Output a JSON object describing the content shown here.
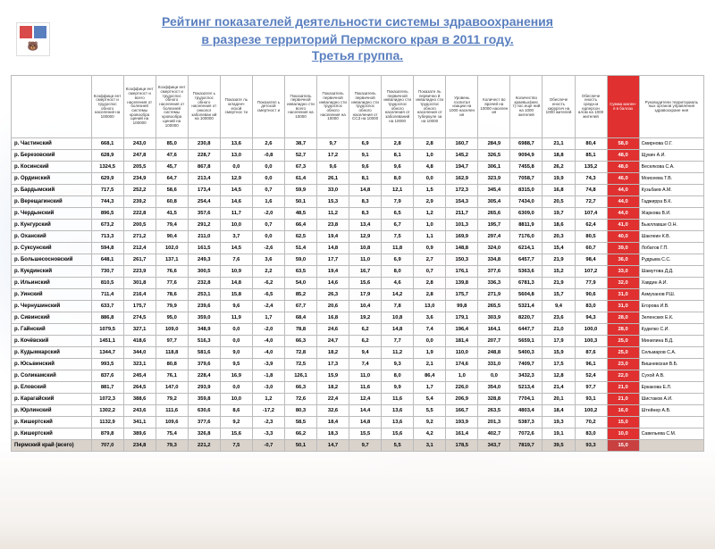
{
  "logo_name": "perm-krai-logo",
  "title": {
    "line1": "Рейтинг показателей деятельности системы здравоохранения",
    "line2": "в разрезе территорий Пермского края в 2011 году.",
    "group": "Третья группа."
  },
  "table": {
    "headers": [
      "Коэффици ент смертност и трудоспос обного населения на 100000",
      "Коэффици ент смертност и всего населения от болезней системы кровообра щений на 100000",
      "Коэффици ент смертност и трудоспос обного населения от болезней системы кровообра щений на 100000",
      "Показател ь трудоспос обного населения от онколог заболеван ий на 100000",
      "Показате ль младенч еской смертнос ти",
      "Показател ь детской смертност и",
      "Показатель первичной инвалидно сти всего населения на 10000",
      "Показатель первичной инвалидно сти трудоспос обного населения на 10000",
      "Показатель первичной инвалидно сти трудоспос обного населения от ССЗ на 10000",
      "Показатель первичной инвалидно сти трудоспос обного населения от заболеваний на 10000",
      "Показате ль первично й инвалидно сти трудоспос обного населения от туберкуле за на 10000",
      "Уровень госпитал изации на 1000 населен ия",
      "Количест во врачей на 10000 населен ия",
      "Количество краевых(мес т) пос.еще ний на 1000 жителей",
      "Обеспече нность хирургич на 1000 жителей",
      "Обеспече нность средн.м едперсон алом на 1000 жителей",
      "Сумма мален-я в баллах",
      "Руководители территориаль ных органов управления здравоохране ния"
    ],
    "header_fontsize": 4.5,
    "row_fontsize": 6,
    "border_color": "#bbb",
    "score_bg": "#e03030",
    "score_fg": "#ffffff",
    "total_bg": "#d9d3cc",
    "rows": [
      {
        "name": "р. Частинский",
        "v": [
          "668,1",
          "243,0",
          "85,0",
          "230,8",
          "13,6",
          "2,6",
          "38,7",
          "9,7",
          "6,9",
          "2,8",
          "2,8",
          "160,7",
          "284,9",
          "6988,7",
          "21,1",
          "80,4"
        ],
        "score": "58,0",
        "head": "Смирнова О.Г."
      },
      {
        "name": "р. Березовский",
        "v": [
          "628,9",
          "247,8",
          "47,6",
          "228,7",
          "13,0",
          "-0,8",
          "52,7",
          "17,2",
          "9,1",
          "8,1",
          "1,0",
          "145,2",
          "326,5",
          "9094,9",
          "18,8",
          "85,1"
        ],
        "score": "48,0",
        "head": "Щукин А.И."
      },
      {
        "name": "р. Косинский",
        "v": [
          "1324,5",
          "205,5",
          "45,7",
          "867,8",
          "0,0",
          "0,0",
          "67,3",
          "9,6",
          "9,6",
          "9,6",
          "4,8",
          "194,7",
          "306,1",
          "7455,8",
          "26,2",
          "135,2"
        ],
        "score": "48,0",
        "head": "Веселкова С.А."
      },
      {
        "name": "р. Ординский",
        "v": [
          "629,9",
          "234,9",
          "64,7",
          "213,4",
          "12,9",
          "0,0",
          "61,4",
          "26,1",
          "8,1",
          "8,0",
          "0,0",
          "162,9",
          "323,9",
          "7058,7",
          "19,9",
          "74,3"
        ],
        "score": "46,0",
        "head": "Моисеева Т.В."
      },
      {
        "name": "р. Бардымский",
        "v": [
          "717,5",
          "252,2",
          "58,6",
          "173,4",
          "14,5",
          "0,7",
          "59,9",
          "33,0",
          "14,8",
          "12,1",
          "1,5",
          "172,3",
          "345,4",
          "8315,0",
          "16,8",
          "74,8"
        ],
        "score": "44,0",
        "head": "Кузьбаев А.М."
      },
      {
        "name": "р. Верещагинский",
        "v": [
          "744,3",
          "239,2",
          "60,8",
          "254,4",
          "14,6",
          "1,6",
          "50,1",
          "15,3",
          "8,3",
          "7,9",
          "2,9",
          "154,3",
          "305,4",
          "7434,0",
          "20,5",
          "72,7"
        ],
        "score": "44,0",
        "head": "Гаджирра В.К."
      },
      {
        "name": "р. Чердынский",
        "v": [
          "896,5",
          "222,8",
          "41,5",
          "357,6",
          "11,7",
          "-2,0",
          "48,5",
          "11,2",
          "8,3",
          "6,5",
          "1,2",
          "211,7",
          "265,6",
          "6309,0",
          "19,7",
          "107,4"
        ],
        "score": "44,0",
        "head": "Жаркова В.И."
      },
      {
        "name": "р. Кунгурский",
        "v": [
          "673,2",
          "200,5",
          "79,4",
          "291,2",
          "10,0",
          "0,7",
          "66,4",
          "23,8",
          "13,4",
          "6,7",
          "1,0",
          "101,3",
          "195,7",
          "8811,9",
          "18,6",
          "62,4"
        ],
        "score": "41,0",
        "head": "Быкллавше О.Н."
      },
      {
        "name": "р. Оханский",
        "v": [
          "713,3",
          "271,2",
          "90,4",
          "211,0",
          "3,7",
          "0,0",
          "62,5",
          "19,4",
          "12,9",
          "7,5",
          "1,1",
          "169,9",
          "297,4",
          "7176,0",
          "20,3",
          "80,5"
        ],
        "score": "40,0",
        "head": "Шаклеин К.В."
      },
      {
        "name": "р. Суксунский",
        "v": [
          "594,8",
          "212,4",
          "102,0",
          "161,5",
          "14,5",
          "-2,6",
          "51,4",
          "14,8",
          "10,8",
          "11,8",
          "0,9",
          "148,8",
          "324,0",
          "6214,1",
          "15,4",
          "60,7"
        ],
        "score": "39,0",
        "head": "Лобатов Г.П."
      },
      {
        "name": "р. Большесосновский",
        "v": [
          "648,1",
          "261,7",
          "137,1",
          "249,3",
          "7,6",
          "3,6",
          "59,0",
          "17,7",
          "11,0",
          "6,9",
          "2,7",
          "150,3",
          "334,8",
          "6457,7",
          "21,9",
          "98,4"
        ],
        "score": "36,0",
        "head": "Рудрыва С.С."
      },
      {
        "name": "р. Куединский",
        "v": [
          "730,7",
          "223,9",
          "76,6",
          "300,5",
          "10,9",
          "2,2",
          "63,5",
          "19,4",
          "16,7",
          "8,0",
          "0,7",
          "176,1",
          "377,6",
          "5363,6",
          "15,2",
          "107,2"
        ],
        "score": "33,0",
        "head": "Шамутова Д.Д."
      },
      {
        "name": "р. Ильинский",
        "v": [
          "810,5",
          "301,8",
          "77,6",
          "232,8",
          "14,8",
          "-6,2",
          "54,0",
          "14,6",
          "15,6",
          "4,6",
          "2,8",
          "139,8",
          "336,3",
          "6781,3",
          "21,9",
          "77,9"
        ],
        "score": "32,0",
        "head": "Хавдин А.И."
      },
      {
        "name": "р. Уинский",
        "v": [
          "711,4",
          "216,4",
          "78,6",
          "253,1",
          "15,8",
          "-6,5",
          "85,2",
          "26,3",
          "17,9",
          "14,2",
          "2,8",
          "175,7",
          "271,9",
          "5604,8",
          "15,7",
          "90,6"
        ],
        "score": "31,0",
        "head": "Азмуханов Р.Ш."
      },
      {
        "name": "р. Чернушинский",
        "v": [
          "633,7",
          "175,7",
          "79,9",
          "239,6",
          "9,6",
          "-2,4",
          "67,7",
          "20,6",
          "10,4",
          "7,8",
          "13,0",
          "99,8",
          "265,5",
          "5321,4",
          "9,4",
          "83,0"
        ],
        "score": "31,0",
        "head": "Егорова И.В."
      },
      {
        "name": "р. Сивинский",
        "v": [
          "886,8",
          "274,5",
          "95,0",
          "359,0",
          "11,9",
          "1,7",
          "68,4",
          "16,8",
          "19,2",
          "10,8",
          "3,6",
          "179,1",
          "303,9",
          "8220,7",
          "23,6",
          "94,3"
        ],
        "score": "28,0",
        "head": "Зеленских Е.К."
      },
      {
        "name": "р. Гайнский",
        "v": [
          "1079,5",
          "327,1",
          "109,0",
          "348,9",
          "0,0",
          "-2,0",
          "78,8",
          "24,6",
          "6,2",
          "14,8",
          "7,4",
          "196,4",
          "164,1",
          "6447,7",
          "21,0",
          "100,0"
        ],
        "score": "28,0",
        "head": "Куделко С.И."
      },
      {
        "name": "р. Кочёвский",
        "v": [
          "1451,1",
          "418,6",
          "97,7",
          "516,3",
          "0,0",
          "-4,0",
          "66,3",
          "24,7",
          "6,2",
          "7,7",
          "0,0",
          "181,4",
          "207,7",
          "5659,1",
          "17,9",
          "100,3"
        ],
        "score": "25,0",
        "head": "Минилина В.Д."
      },
      {
        "name": "р. Кудымкарский",
        "v": [
          "1344,7",
          "344,0",
          "118,8",
          "581,6",
          "9,0",
          "-4,0",
          "72,8",
          "18,2",
          "9,4",
          "11,2",
          "1,9",
          "110,0",
          "248,8",
          "5400,3",
          "15,9",
          "87,6"
        ],
        "score": "25,0",
        "head": "Сельмаров С.А."
      },
      {
        "name": "р. Юсьвинский",
        "v": [
          "993,5",
          "323,1",
          "80,8",
          "379,6",
          "9,5",
          "-3,9",
          "72,5",
          "17,3",
          "7,4",
          "9,3",
          "2,1",
          "174,6",
          "331,0",
          "7409,7",
          "17,5",
          "96,1"
        ],
        "score": "23,0",
        "head": "Вишневская В.Б."
      },
      {
        "name": "р. Соликамский",
        "v": [
          "837,6",
          "245,4",
          "76,1",
          "228,4",
          "16,9",
          "-1,8",
          "126,1",
          "15,9",
          "11,0",
          "8,0",
          "86,4",
          "1,0",
          "0,0",
          "3432,3",
          "12,8",
          "52,4"
        ],
        "score": "22,0",
        "head": "Сухой А.В."
      },
      {
        "name": "р. Еловский",
        "v": [
          "881,7",
          "264,5",
          "147,0",
          "293,9",
          "0,0",
          "-3,0",
          "66,3",
          "18,2",
          "11,6",
          "9,9",
          "1,7",
          "226,0",
          "354,0",
          "5213,4",
          "21,4",
          "97,7"
        ],
        "score": "21,0",
        "head": "Еркакова Е.Л."
      },
      {
        "name": "р. Карагайский",
        "v": [
          "1072,3",
          "388,6",
          "79,2",
          "359,8",
          "10,0",
          "1,2",
          "72,6",
          "22,4",
          "12,4",
          "11,6",
          "5,4",
          "206,9",
          "328,8",
          "7704,1",
          "20,1",
          "93,1"
        ],
        "score": "21,0",
        "head": "Шистаков А.И."
      },
      {
        "name": "р. Юрлинский",
        "v": [
          "1302,2",
          "243,6",
          "111,6",
          "630,6",
          "8,6",
          "-17,2",
          "80,3",
          "32,6",
          "14,4",
          "13,6",
          "5,5",
          "166,7",
          "263,5",
          "4803,4",
          "18,4",
          "100,2"
        ],
        "score": "16,0",
        "head": "Штейнер А.В."
      },
      {
        "name": "р. Кишертский",
        "v": [
          "1132,9",
          "341,1",
          "109,6",
          "377,6",
          "9,2",
          "-2,3",
          "58,5",
          "18,4",
          "14,8",
          "13,6",
          "9,2",
          "193,9",
          "201,3",
          "5387,3",
          "19,3",
          "70,2"
        ],
        "score": "15,0",
        "head": ""
      },
      {
        "name": "р. Кишертский",
        "v": [
          "879,8",
          "389,6",
          "75,4",
          "326,8",
          "15,6",
          "-3,3",
          "66,2",
          "18,3",
          "15,5",
          "15,6",
          "4,2",
          "161,4",
          "402,7",
          "7072,6",
          "19,1",
          "83,0"
        ],
        "score": "10,0",
        "head": "Савельева С.М."
      }
    ],
    "total": {
      "name": "Пермский край (всего)",
      "v": [
        "707,0",
        "234,8",
        "79,3",
        "221,2",
        "7,5",
        "-0,7",
        "50,1",
        "14,7",
        "9,7",
        "5,5",
        "3,1",
        "178,5",
        "343,7",
        "7819,7",
        "39,5",
        "93,3"
      ],
      "score": "15,0",
      "head": ""
    }
  }
}
